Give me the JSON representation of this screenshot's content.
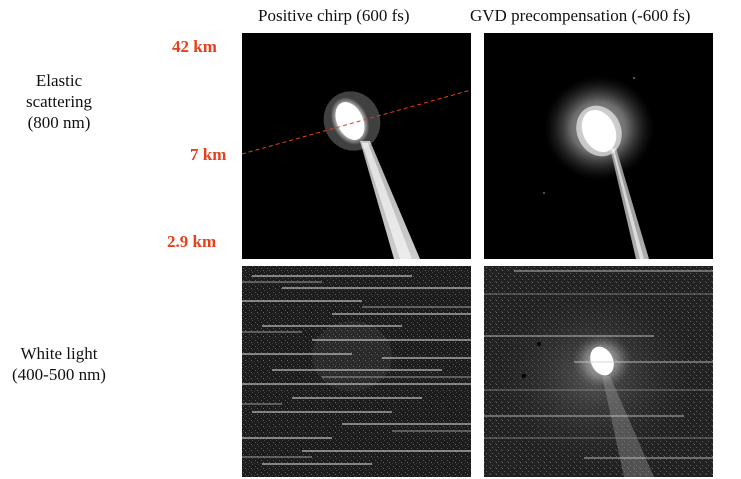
{
  "column_titles": [
    "Positive chirp (600 fs)",
    "GVD precompensation (-600 fs)"
  ],
  "row_labels": [
    {
      "line1": "Elastic",
      "line2": "scattering",
      "line3": "(800 nm)"
    },
    {
      "line1": "White light",
      "line2": "(400-500 nm)"
    }
  ],
  "altitude_labels": [
    "42 km",
    "7 km",
    "2.9 km"
  ],
  "colors": {
    "altitude_label": "#e8401c",
    "dashed_line": "#e8401c",
    "panel_background": "#000000"
  }
}
